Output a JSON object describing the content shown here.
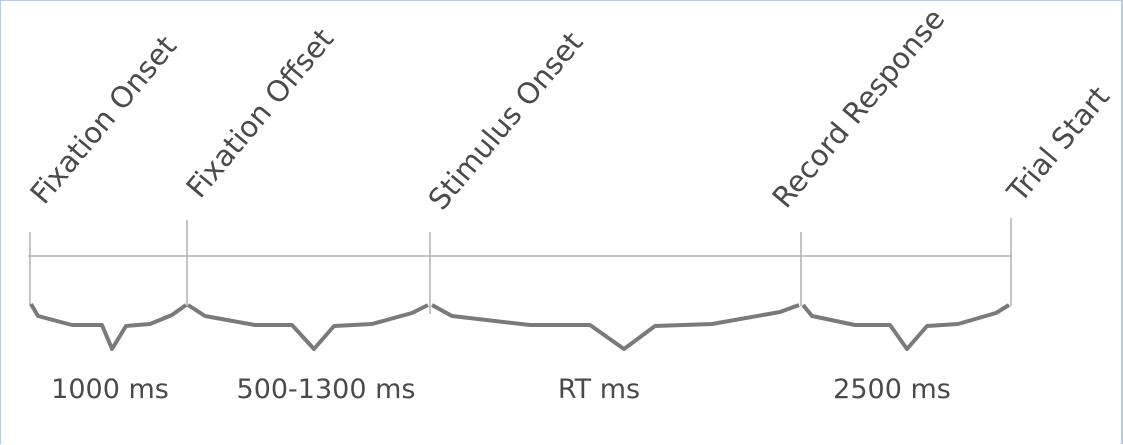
{
  "timeline": {
    "events": [
      {
        "label": "Fixation Onset"
      },
      {
        "label": "Fixation Offset"
      },
      {
        "label": "Stimulus Onset"
      },
      {
        "label": "Record Response"
      },
      {
        "label": "Trial Start"
      }
    ],
    "durations": [
      {
        "label": "1000 ms"
      },
      {
        "label": "500-1300 ms"
      },
      {
        "label": "RT ms"
      },
      {
        "label": "2500 ms"
      }
    ]
  },
  "colors": {
    "frame": "#b9c9dd",
    "axis": "#b0b0b0",
    "brace": "#7a7a7a",
    "text": "#4a4a4a"
  }
}
